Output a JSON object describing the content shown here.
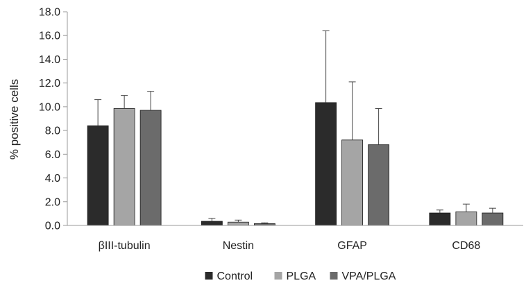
{
  "chart_data": {
    "type": "bar",
    "ylabel": "% positive cells",
    "xlabel": "",
    "ylim": [
      0,
      18
    ],
    "yticks": [
      "0.0",
      "2.0",
      "4.0",
      "6.0",
      "8.0",
      "10.0",
      "12.0",
      "14.0",
      "16.0",
      "18.0"
    ],
    "categories": [
      "βIII-tubulin",
      "Nestin",
      "GFAP",
      "CD68"
    ],
    "grid": false,
    "legend_position": "bottom",
    "error_bars": true,
    "series": [
      {
        "name": "Control",
        "color": "#2b2b2b",
        "values": [
          8.4,
          0.35,
          10.35,
          1.05
        ],
        "errors": [
          2.2,
          0.25,
          6.05,
          0.25
        ]
      },
      {
        "name": "PLGA",
        "color": "#a5a5a5",
        "values": [
          9.85,
          0.28,
          7.2,
          1.15
        ],
        "errors": [
          1.1,
          0.17,
          4.9,
          0.65
        ]
      },
      {
        "name": "VPA/PLGA",
        "color": "#6b6b6b",
        "values": [
          9.7,
          0.15,
          6.8,
          1.05
        ],
        "errors": [
          1.6,
          0.07,
          3.05,
          0.4
        ]
      }
    ]
  }
}
